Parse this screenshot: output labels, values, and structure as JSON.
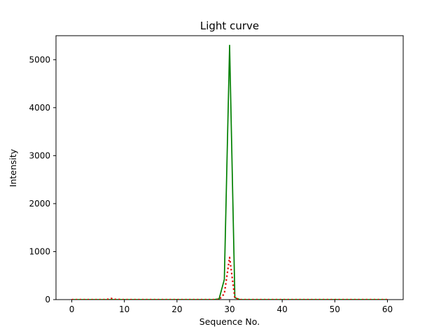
{
  "figure": {
    "background": "#ffffff"
  },
  "chart_data": {
    "type": "line",
    "title": "Light curve",
    "xlabel": "Sequence No.",
    "ylabel": "Intensity",
    "xlim": [
      -3,
      63
    ],
    "ylim": [
      0,
      5500
    ],
    "xticks": [
      0,
      10,
      20,
      30,
      40,
      50,
      60
    ],
    "yticks": [
      0,
      1000,
      2000,
      3000,
      4000,
      5000
    ],
    "grid": false,
    "legend": "none",
    "axis_color": "#000000",
    "series": [
      {
        "name": "intensity-solid",
        "color": "#008000",
        "line_style": "solid",
        "line_width": 1.7,
        "points": [
          [
            0,
            0
          ],
          [
            2,
            0
          ],
          [
            4,
            0
          ],
          [
            6,
            0
          ],
          [
            8,
            0
          ],
          [
            10,
            0
          ],
          [
            12,
            0
          ],
          [
            14,
            0
          ],
          [
            16,
            0
          ],
          [
            18,
            0
          ],
          [
            20,
            0
          ],
          [
            22,
            0
          ],
          [
            24,
            0
          ],
          [
            26,
            0
          ],
          [
            27,
            0
          ],
          [
            28,
            15
          ],
          [
            29,
            420
          ],
          [
            30,
            5300
          ],
          [
            31,
            40
          ],
          [
            32,
            0
          ],
          [
            34,
            0
          ],
          [
            36,
            0
          ],
          [
            38,
            0
          ],
          [
            40,
            0
          ],
          [
            42,
            0
          ],
          [
            44,
            0
          ],
          [
            46,
            0
          ],
          [
            48,
            0
          ],
          [
            50,
            0
          ],
          [
            52,
            0
          ],
          [
            54,
            0
          ],
          [
            56,
            0
          ],
          [
            58,
            0
          ],
          [
            60,
            0
          ]
        ]
      },
      {
        "name": "intensity-dotted",
        "color": "#e00000",
        "line_style": "dotted",
        "line_width": 2.2,
        "points": [
          [
            0,
            0
          ],
          [
            2,
            0
          ],
          [
            4,
            0
          ],
          [
            6,
            0
          ],
          [
            7,
            8
          ],
          [
            7.5,
            25
          ],
          [
            8,
            6
          ],
          [
            10,
            0
          ],
          [
            12,
            0
          ],
          [
            14,
            0
          ],
          [
            16,
            0
          ],
          [
            18,
            0
          ],
          [
            20,
            0
          ],
          [
            22,
            0
          ],
          [
            24,
            0
          ],
          [
            26,
            0
          ],
          [
            28,
            0
          ],
          [
            29,
            120
          ],
          [
            30,
            880
          ],
          [
            31,
            30
          ],
          [
            32,
            0
          ],
          [
            34,
            0
          ],
          [
            36,
            0
          ],
          [
            38,
            0
          ],
          [
            40,
            0
          ],
          [
            42,
            0
          ],
          [
            44,
            0
          ],
          [
            46,
            0
          ],
          [
            48,
            0
          ],
          [
            50,
            0
          ],
          [
            52,
            0
          ],
          [
            54,
            0
          ],
          [
            56,
            0
          ],
          [
            58,
            0
          ],
          [
            60,
            0
          ]
        ]
      }
    ]
  }
}
